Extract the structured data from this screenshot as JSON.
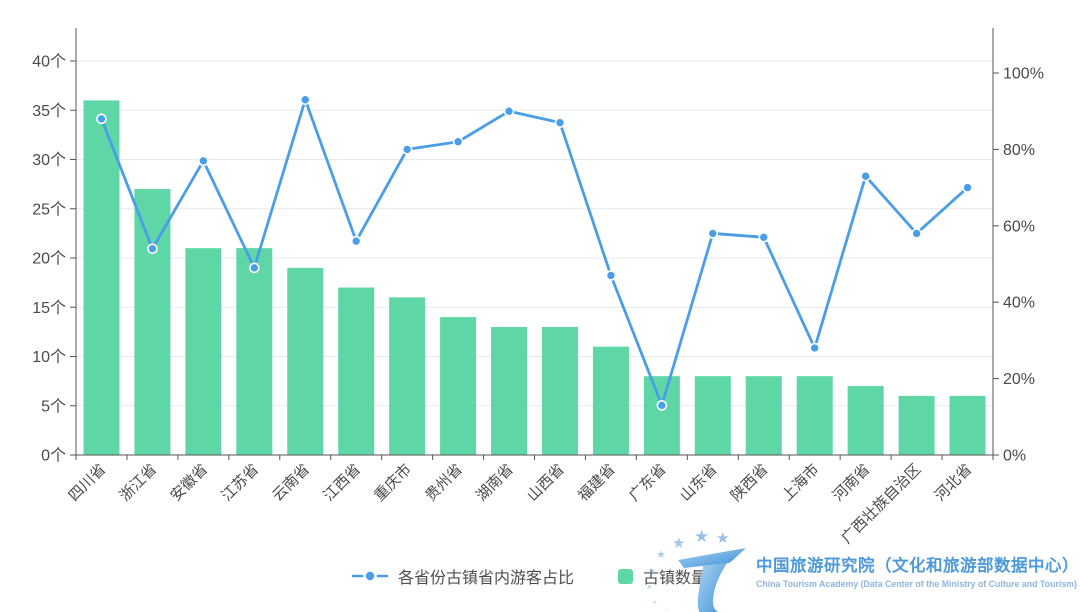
{
  "chart_data": {
    "type": "bar+line",
    "title": "",
    "categories": [
      "四川省",
      "浙江省",
      "安徽省",
      "江苏省",
      "云南省",
      "江西省",
      "重庆市",
      "贵州省",
      "湖南省",
      "山西省",
      "福建省",
      "广东省",
      "山东省",
      "陕西省",
      "上海市",
      "河南省",
      "广西壮族自治区",
      "河北省"
    ],
    "series": [
      {
        "name": "古镇数量",
        "type": "bar",
        "axis": "left",
        "unit": "个",
        "values": [
          36,
          27,
          21,
          21,
          19,
          17,
          16,
          14,
          13,
          13,
          11,
          8,
          8,
          8,
          8,
          7,
          6,
          6
        ]
      },
      {
        "name": "各省份古镇省内游客占比",
        "type": "line",
        "axis": "right",
        "unit": "%",
        "values": [
          88,
          54,
          77,
          49,
          93,
          56,
          80,
          82,
          90,
          87,
          47,
          13,
          58,
          57,
          28,
          73,
          58,
          70
        ]
      }
    ],
    "left_axis": {
      "min": 0,
      "max": 40,
      "step": 5,
      "suffix": "个",
      "ticks": [
        "0个",
        "5个",
        "10个",
        "15个",
        "20个",
        "25个",
        "30个",
        "35个",
        "40个"
      ]
    },
    "right_axis": {
      "min": 0,
      "max": 100,
      "step": 20,
      "suffix": "%",
      "ticks": [
        "0%",
        "20%",
        "40%",
        "60%",
        "80%",
        "100%"
      ]
    },
    "grid": true,
    "legend_position": "bottom-center"
  },
  "legend": {
    "items": [
      {
        "label": "各省份古镇省内游客占比",
        "marker": "dash-dot-line"
      },
      {
        "label": "古镇数量",
        "marker": "square"
      }
    ]
  },
  "branding": {
    "logo": "china-tourism-academy-T-logo",
    "name_cn": "中国旅游研究院（文化和旅游部数据中心）",
    "name_en": "China Tourism Academy (Data Center of the Ministry of Culture and Tourism)"
  },
  "colors": {
    "bar": "#5fd6a5",
    "line": "#4a9ee8",
    "marker_ring": "#ffffff",
    "grid": "#e9e9ec",
    "axis_line": "#565656",
    "tick_label": "#4a4a4a",
    "brand_cn": "#4f9ad8",
    "brand_en": "#8fb4dd",
    "star": "#7fb0e0"
  }
}
